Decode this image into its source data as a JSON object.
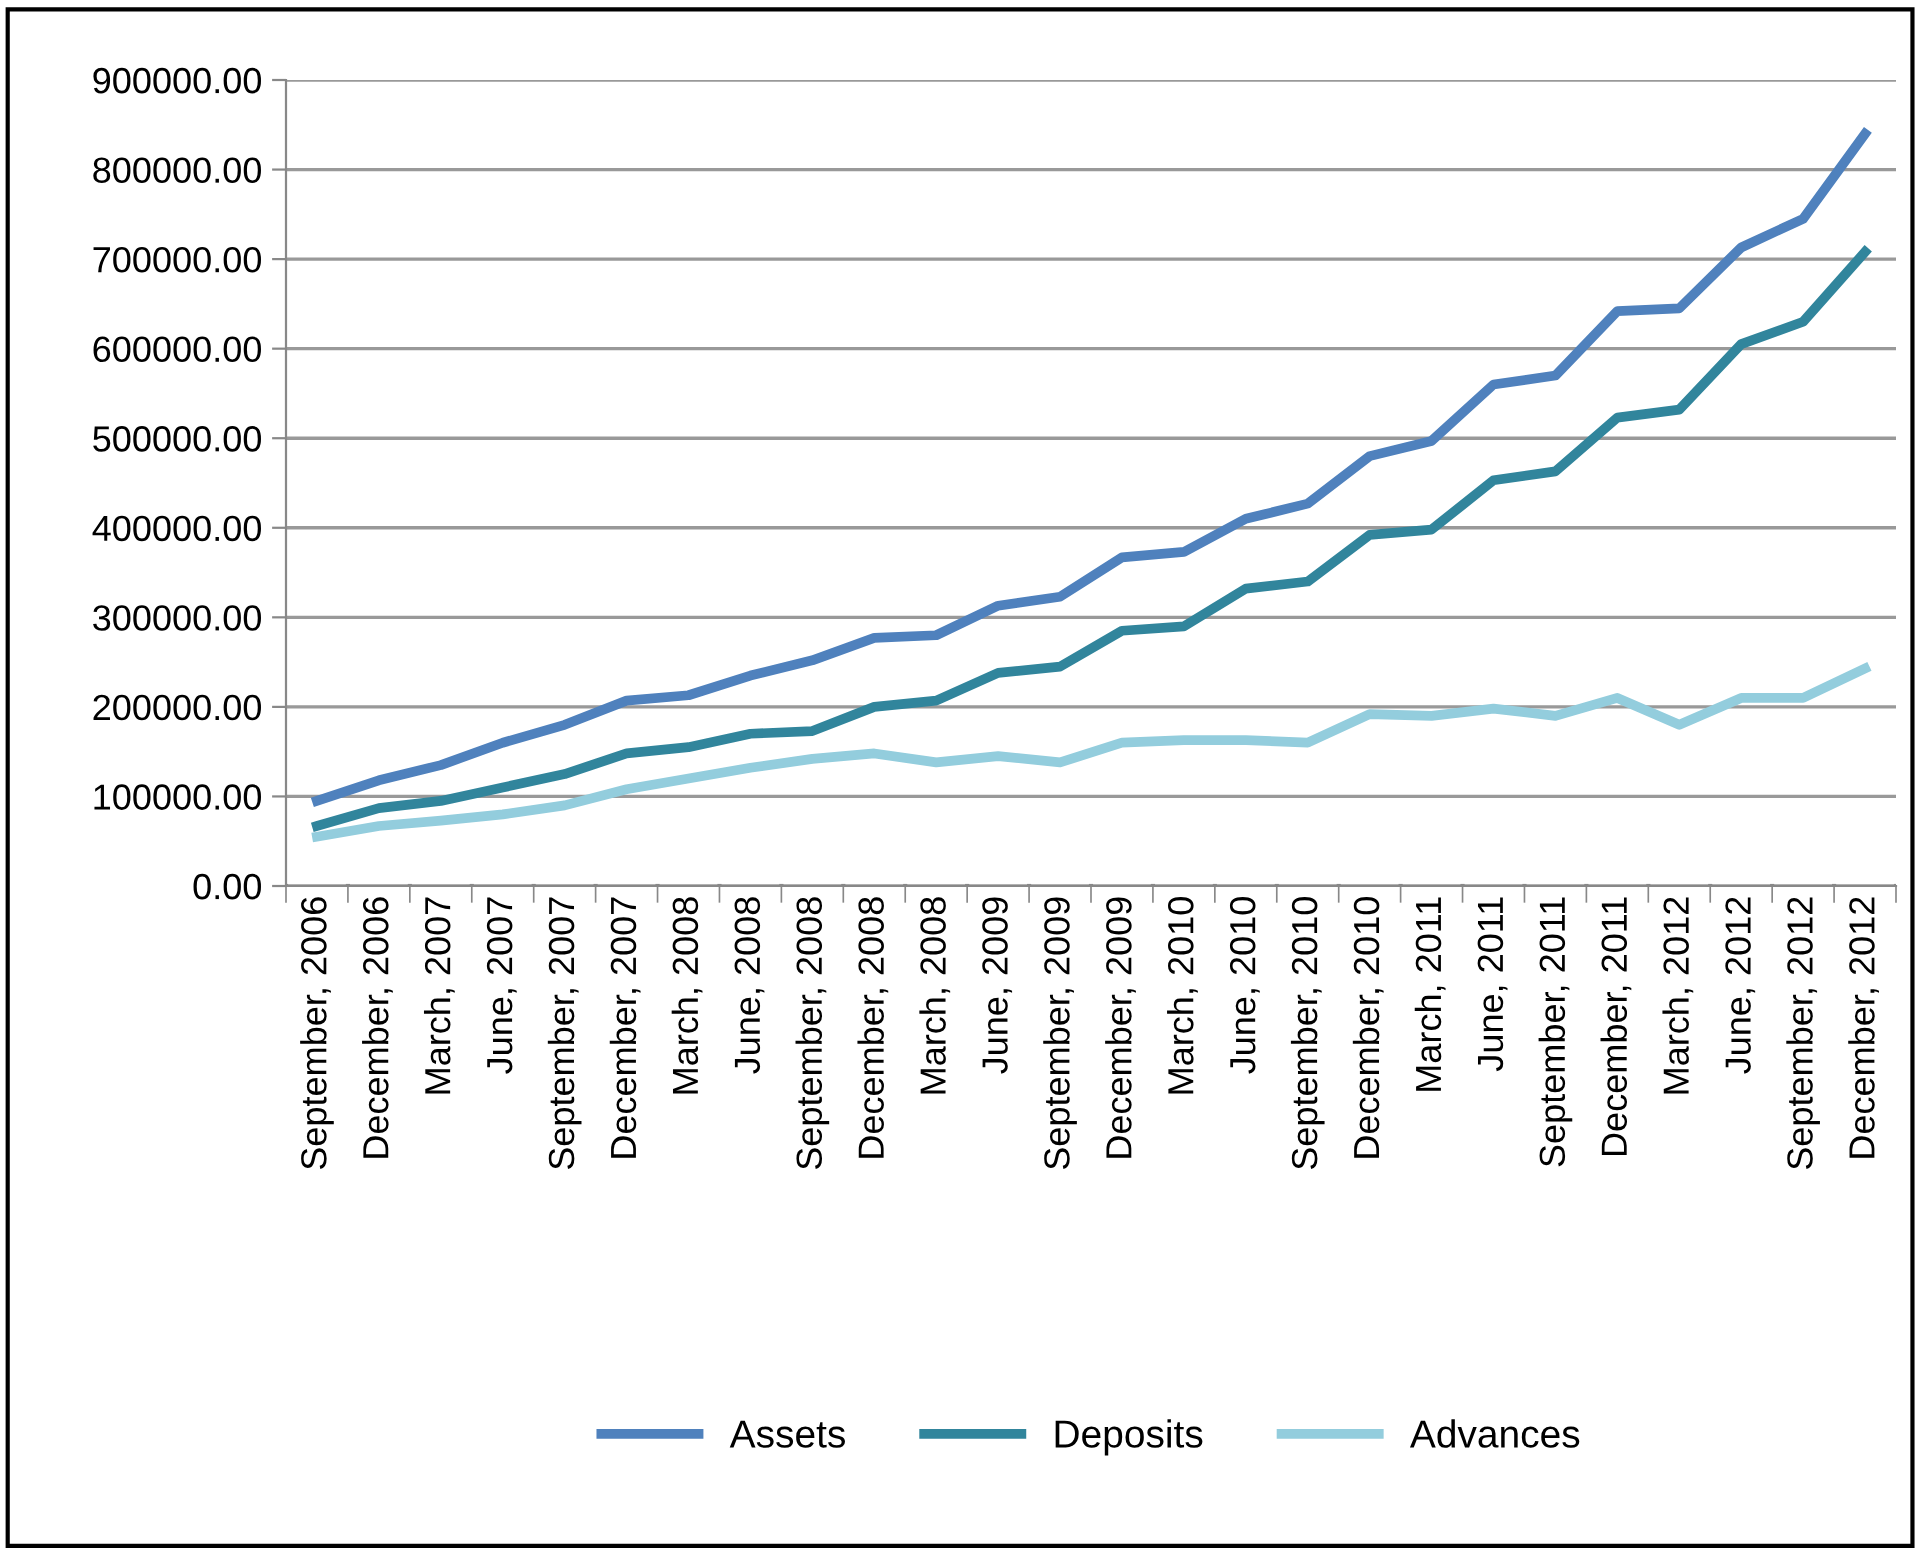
{
  "chart_data": {
    "type": "line",
    "categories": [
      "September, 2006",
      "December, 2006",
      "March, 2007",
      "June, 2007",
      "September, 2007",
      "December, 2007",
      "March, 2008",
      "June, 2008",
      "September, 2008",
      "December, 2008",
      "March, 2008",
      "June, 2009",
      "September, 2009",
      "December, 2009",
      "March, 2010",
      "June, 2010",
      "September, 2010",
      "December, 2010",
      "March, 2011",
      "June, 2011",
      "September, 2011",
      "December, 2011",
      "March, 2012",
      "June, 2012",
      "September, 2012",
      "December, 2012"
    ],
    "series": [
      {
        "name": "Assets",
        "color": "#4f81bd",
        "values": [
          95000,
          118000,
          135000,
          160000,
          180000,
          207000,
          213000,
          235000,
          252000,
          277000,
          280000,
          313000,
          323000,
          367000,
          373000,
          410000,
          427000,
          480000,
          497000,
          560000,
          570000,
          642000,
          645000,
          713000,
          745000,
          840000
        ]
      },
      {
        "name": "Deposits",
        "color": "#31859c",
        "values": [
          67000,
          87000,
          95000,
          110000,
          125000,
          148000,
          155000,
          170000,
          173000,
          200000,
          207000,
          238000,
          245000,
          285000,
          290000,
          332000,
          340000,
          392000,
          398000,
          453000,
          463000,
          523000,
          532000,
          605000,
          630000,
          708000
        ]
      },
      {
        "name": "Advances",
        "color": "#93cddd",
        "values": [
          55000,
          67000,
          73000,
          80000,
          90000,
          108000,
          120000,
          132000,
          142000,
          148000,
          138000,
          145000,
          138000,
          160000,
          163000,
          163000,
          160000,
          192000,
          190000,
          198000,
          190000,
          210000,
          180000,
          210000,
          210000,
          243000
        ]
      }
    ],
    "ylim": [
      0,
      900000
    ],
    "yticks": [
      {
        "value": 0,
        "label": "0.00"
      },
      {
        "value": 100000,
        "label": "100000.00"
      },
      {
        "value": 200000,
        "label": "200000.00"
      },
      {
        "value": 300000,
        "label": "300000.00"
      },
      {
        "value": 400000,
        "label": "400000.00"
      },
      {
        "value": 500000,
        "label": "500000.00"
      },
      {
        "value": 600000,
        "label": "600000.00"
      },
      {
        "value": 700000,
        "label": "700000.00"
      },
      {
        "value": 800000,
        "label": "800000.00"
      },
      {
        "value": 900000,
        "label": "900000.00"
      }
    ],
    "grid": "y",
    "legend": "bottom",
    "marker": "none",
    "line_style": "solid"
  }
}
